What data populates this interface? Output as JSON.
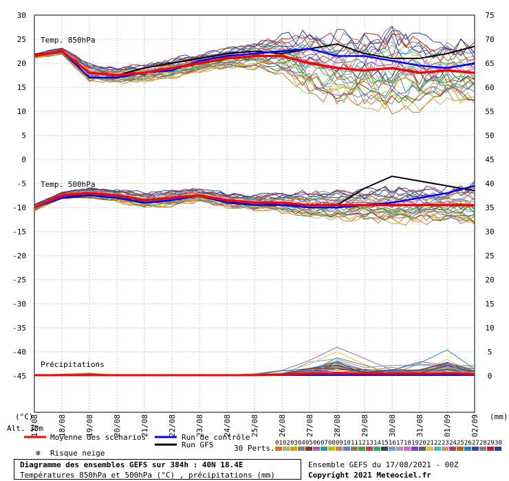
{
  "legend": {
    "alt": "Alt. 30m",
    "mean": "Moyenne des scénarios",
    "control": "Run de contrôle",
    "gfs": "Run GFS",
    "snow": "Risque neige",
    "perts": "30 Perts.",
    "pert_labels": [
      "01",
      "02",
      "03",
      "04",
      "05",
      "06",
      "07",
      "08",
      "09",
      "10",
      "11",
      "12",
      "13",
      "14",
      "15",
      "16",
      "17",
      "18",
      "19",
      "20",
      "21",
      "22",
      "23",
      "24",
      "25",
      "26",
      "27",
      "28",
      "29",
      "30"
    ],
    "pert_colors": [
      "#e07020",
      "#a0c060",
      "#e0a000",
      "#808080",
      "#804000",
      "#a060c0",
      "#20a0a0",
      "#c0c000",
      "#d08040",
      "#6080c0",
      "#808040",
      "#40a040",
      "#c04040",
      "#20b060",
      "#404040",
      "#60a0e0",
      "#a0a0a0",
      "#e060c0",
      "#8040c0",
      "#606060",
      "#e0c040",
      "#40c0c0",
      "#c0a060",
      "#a04080",
      "#c06000",
      "#2080c0",
      "#4040a0",
      "#808080",
      "#c02020",
      "#2040a0"
    ],
    "colors": {
      "mean": "#ff0000",
      "control": "#0000ff",
      "gfs": "#000000"
    }
  },
  "footer": {
    "title": "Diagramme des ensembles GEFS sur 384h : 40N 18.4E",
    "subtitle": "Températures 850hPa et 500hPa (°C) , précipitations (mm)",
    "ensemble": "Ensemble GEFS du 17/08/2021 - 00Z",
    "copyright": "Copyright 2021 Meteociel.fr"
  },
  "chart_data": {
    "type": "line",
    "x_dates": [
      "17/08",
      "18/08",
      "19/08",
      "20/08",
      "21/08",
      "22/08",
      "23/08",
      "24/08",
      "25/08",
      "26/08",
      "27/08",
      "28/08",
      "29/08",
      "30/08",
      "31/08",
      "01/09",
      "02/09"
    ],
    "left_unit": "(°C)",
    "right_unit": "(mm)",
    "left_ticks": [
      30,
      25,
      20,
      15,
      10,
      5,
      0,
      -5,
      -10,
      -15,
      -20,
      -25,
      -30,
      -35,
      -40,
      -45
    ],
    "right_ticks": [
      75,
      70,
      65,
      60,
      55,
      50,
      45,
      40,
      35,
      30,
      25,
      20,
      15,
      10,
      5,
      0
    ],
    "grid": true,
    "annotations": [
      "Temp. 850hPa",
      "Temp. 500hPa",
      "Précipitations"
    ],
    "t850": {
      "mean": [
        21.5,
        22.5,
        18,
        17.5,
        18,
        19,
        20,
        21,
        21.5,
        21.5,
        20,
        19,
        18.5,
        19,
        18,
        18.5,
        18
      ],
      "control": [
        21.5,
        22.5,
        17,
        17,
        18,
        18.5,
        20.5,
        21.5,
        22,
        22.5,
        23,
        21.5,
        21.5,
        20.5,
        19.5,
        19,
        20
      ],
      "gfs": [
        21.5,
        22.5,
        18,
        17.5,
        19,
        20,
        21,
        22,
        22.5,
        22,
        23,
        24,
        22,
        21,
        21,
        22,
        23.5
      ],
      "spread_high": [
        22,
        23.5,
        20,
        19.5,
        20.5,
        21.5,
        22.5,
        23.5,
        24,
        25,
        26,
        27,
        28,
        28.5,
        26,
        25,
        24
      ],
      "spread_low": [
        21,
        22,
        16,
        16,
        16.5,
        17,
        18.5,
        19,
        18,
        16,
        12,
        11,
        12,
        9,
        10,
        11,
        10
      ]
    },
    "t500": {
      "mean": [
        -10,
        -7.5,
        -7,
        -7.5,
        -8.5,
        -8,
        -7.5,
        -8.5,
        -9,
        -9,
        -9.5,
        -9.5,
        -9.5,
        -9.5,
        -9.5,
        -9.5,
        -9.5
      ],
      "control": [
        -10,
        -8,
        -7.5,
        -8,
        -9,
        -8.5,
        -7.5,
        -9,
        -9.5,
        -9.5,
        -10,
        -10,
        -9.5,
        -9,
        -8,
        -7,
        -5.5
      ],
      "gfs": [
        -10,
        -8,
        -7,
        -7.5,
        -8.5,
        -8,
        -7.5,
        -9,
        -9,
        -9.5,
        -9.5,
        -9.5,
        -6,
        -3.5,
        -4.5,
        -5.5,
        -6.5
      ],
      "spread_high": [
        -9.5,
        -7,
        -6,
        -6,
        -7,
        -6.5,
        -6,
        -7,
        -7.5,
        -7.5,
        -7.5,
        -7,
        -7,
        -7,
        -7,
        -6.5,
        -6
      ],
      "spread_low": [
        -11,
        -8.5,
        -8.5,
        -9,
        -10.5,
        -10,
        -9,
        -10.5,
        -11,
        -12,
        -13.5,
        -14,
        -14,
        -15,
        -15,
        -14,
        -16
      ]
    },
    "precip_mm": {
      "mean": [
        0,
        0,
        0,
        0,
        0,
        0,
        0,
        0,
        0,
        0.1,
        0.3,
        0.4,
        0.3,
        0.3,
        0.3,
        0.4,
        0.2
      ],
      "max": [
        0,
        0.3,
        0.6,
        0,
        0,
        0,
        0,
        0,
        0.3,
        1.2,
        3.8,
        7.5,
        3.5,
        3,
        3,
        7,
        2.5
      ]
    }
  }
}
